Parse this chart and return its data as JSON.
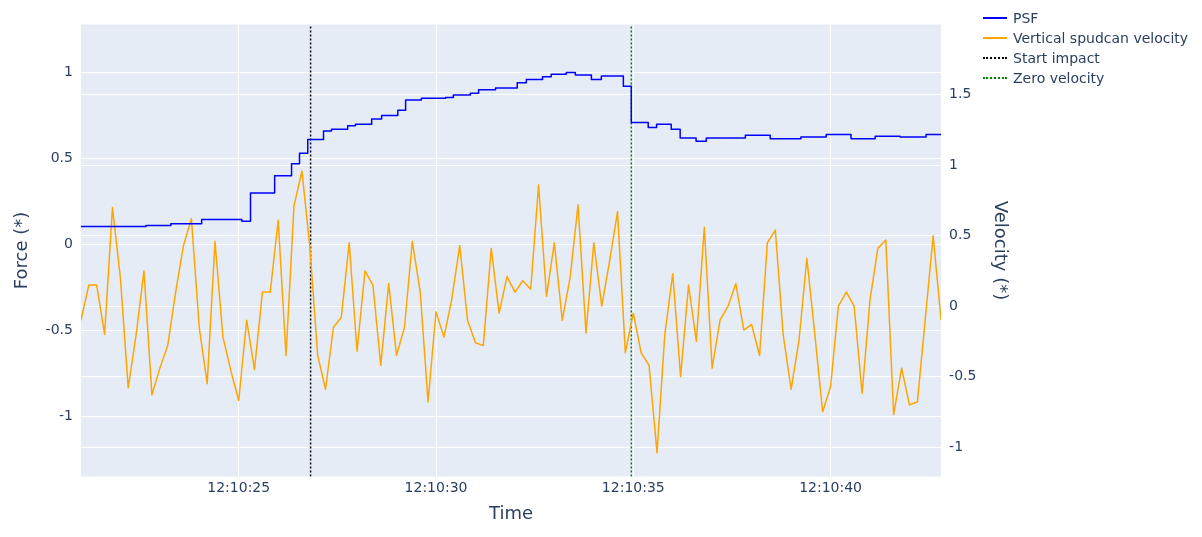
{
  "chart_data": {
    "type": "line",
    "xlabel": "Time",
    "ylabel": "Force (*)",
    "y2label": "Velocity (*)",
    "xlim": [
      12.1725,
      12.178556
    ],
    "xticks": [
      {
        "value": 12.173611,
        "label": "12:10:25"
      },
      {
        "value": 12.175,
        "label": "12:10:30"
      },
      {
        "value": 12.176389,
        "label": "12:10:35"
      },
      {
        "value": 12.177778,
        "label": "12:10:40"
      }
    ],
    "ylim": [
      -1.35,
      1.28
    ],
    "yticks": [
      -1,
      -0.5,
      0,
      0.5,
      1
    ],
    "y2lim": [
      -1.21,
      2.0
    ],
    "y2ticks": [
      -1,
      -0.5,
      0,
      0.5,
      1,
      1.5
    ],
    "grid": true,
    "legend": "top right",
    "series": [
      {
        "name": "PSF",
        "type": "step",
        "color": "#0000ff",
        "x": [
          12.1725,
          12.172958,
          12.173133,
          12.17335,
          12.173633,
          12.173694,
          12.173864,
          12.173983,
          12.174039,
          12.174097,
          12.174208,
          12.174264,
          12.174378,
          12.174433,
          12.174547,
          12.174617,
          12.174731,
          12.174786,
          12.174897,
          12.175067,
          12.175122,
          12.175242,
          12.1753,
          12.175419,
          12.175572,
          12.175636,
          12.17575,
          12.175811,
          12.175917,
          12.175981,
          12.176094,
          12.176164,
          12.176319,
          12.176375,
          12.176494,
          12.176553,
          12.176656,
          12.176719,
          12.176831,
          12.176903,
          12.177178,
          12.177353,
          12.177569,
          12.177747,
          12.177922,
          12.178092,
          12.178267,
          12.17845,
          12.178497,
          12.178556
        ],
        "values": [
          0.1,
          0.105,
          0.11,
          0.12,
          0.145,
          0.135,
          0.3,
          0.4,
          0.47,
          0.53,
          0.61,
          0.66,
          0.67,
          0.69,
          0.7,
          0.73,
          0.75,
          0.78,
          0.84,
          0.85,
          0.855,
          0.87,
          0.88,
          0.9,
          0.91,
          0.94,
          0.96,
          0.975,
          0.99,
          1.0,
          0.985,
          0.96,
          0.98,
          0.92,
          0.71,
          0.68,
          0.7,
          0.67,
          0.62,
          0.6,
          0.62,
          0.635,
          0.615,
          0.625,
          0.64,
          0.615,
          0.63,
          0.625,
          0.64,
          0.64
        ]
      },
      {
        "name": "Vertical spudcan velocity",
        "type": "line",
        "axis": "y2",
        "color": "#ffa500",
        "x": [
          12.1725,
          12.172556,
          12.172611,
          12.172667,
          12.172722,
          12.172778,
          12.172833,
          12.172889,
          12.172944,
          12.173,
          12.173056,
          12.173111,
          12.173167,
          12.173222,
          12.173278,
          12.173333,
          12.173389,
          12.173444,
          12.1735,
          12.173556,
          12.173611,
          12.173667,
          12.173722,
          12.173778,
          12.173833,
          12.173889,
          12.173944,
          12.174,
          12.174056,
          12.174111,
          12.174167,
          12.174222,
          12.174278,
          12.174333,
          12.174389,
          12.174444,
          12.1745,
          12.174556,
          12.174611,
          12.174667,
          12.174722,
          12.174778,
          12.174833,
          12.174889,
          12.174944,
          12.175,
          12.175056,
          12.175111,
          12.175167,
          12.175222,
          12.175278,
          12.175333,
          12.175389,
          12.175444,
          12.1755,
          12.175556,
          12.175611,
          12.175667,
          12.175722,
          12.175778,
          12.175833,
          12.175889,
          12.175944,
          12.176,
          12.176056,
          12.176111,
          12.176167,
          12.176222,
          12.176278,
          12.176333,
          12.176389,
          12.176444,
          12.1765,
          12.176556,
          12.176611,
          12.176667,
          12.176722,
          12.176778,
          12.176833,
          12.176889,
          12.176944,
          12.177,
          12.177056,
          12.177111,
          12.177167,
          12.177222,
          12.177278,
          12.177333,
          12.177389,
          12.177444,
          12.1775,
          12.177556,
          12.177611,
          12.177667,
          12.177722,
          12.177778,
          12.177833,
          12.177889,
          12.177944,
          12.178,
          12.178056,
          12.178111,
          12.178167,
          12.178222,
          12.178278,
          12.178333,
          12.178389,
          12.178444,
          12.1785,
          12.178556
        ],
        "values": [
          -0.1,
          0.15,
          0.15,
          -0.2,
          0.7,
          0.2,
          -0.58,
          -0.2,
          0.25,
          -0.63,
          -0.44,
          -0.28,
          0.1,
          0.43,
          0.62,
          -0.15,
          -0.55,
          0.46,
          -0.22,
          -0.46,
          -0.67,
          -0.1,
          -0.45,
          0.1,
          0.1,
          0.61,
          -0.35,
          0.71,
          0.96,
          0.43,
          -0.35,
          -0.59,
          -0.15,
          -0.08,
          0.45,
          -0.32,
          0.25,
          0.15,
          -0.42,
          0.16,
          -0.35,
          -0.15,
          0.46,
          0.1,
          -0.68,
          -0.04,
          -0.22,
          0.05,
          0.43,
          -0.1,
          -0.26,
          -0.28,
          0.41,
          -0.05,
          0.21,
          0.1,
          0.18,
          0.12,
          0.86,
          0.07,
          0.45,
          -0.1,
          0.2,
          0.72,
          -0.19,
          0.45,
          0.0,
          0.32,
          0.67,
          -0.33,
          -0.05,
          -0.33,
          -0.42,
          -1.04,
          -0.2,
          0.23,
          -0.5,
          0.15,
          -0.25,
          0.56,
          -0.44,
          -0.1,
          0.0,
          0.16,
          -0.17,
          -0.13,
          -0.35,
          0.45,
          0.54,
          -0.2,
          -0.59,
          -0.24,
          0.34,
          -0.2,
          -0.75,
          -0.57,
          0.0,
          0.1,
          0.0,
          -0.62,
          0.05,
          0.41,
          0.47,
          -0.77,
          -0.44,
          -0.7,
          -0.68,
          -0.1,
          0.5,
          -0.1
        ]
      },
      {
        "name": "Start impact",
        "type": "line",
        "color": "#000000",
        "line_style": "dotted",
        "x": [
          12.174117,
          12.174117
        ],
        "values": [
          -1.35,
          1.28
        ]
      },
      {
        "name": "Zero velocity",
        "type": "line",
        "color": "#008000",
        "line_style": "dotted",
        "x": [
          12.176375,
          12.176375
        ],
        "values": [
          -1.35,
          1.28
        ]
      }
    ]
  }
}
